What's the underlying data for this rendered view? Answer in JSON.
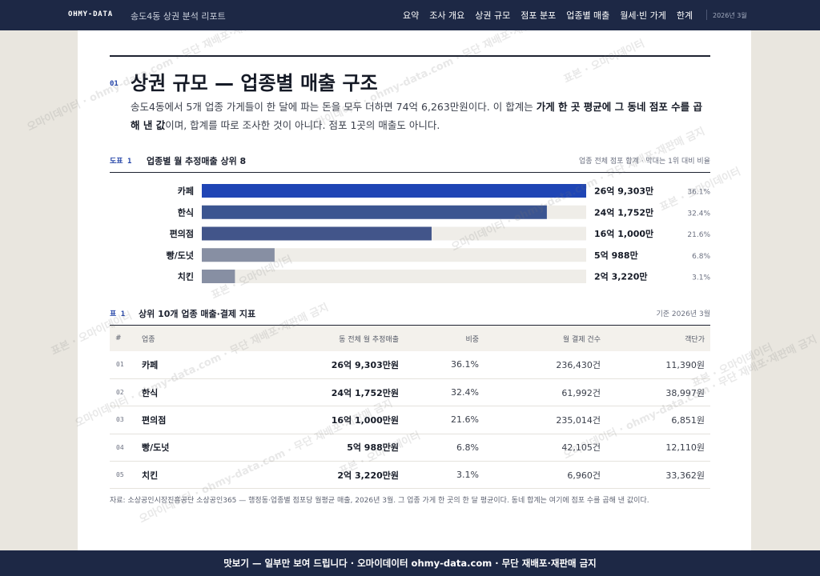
{
  "header": {
    "brand": "OHMY-DATA",
    "subtitle": "송도4동 상권 분석 리포트",
    "nav": [
      "요약",
      "조사 개요",
      "상권 규모",
      "점포 분포",
      "업종별 매출",
      "월세·빈 가게",
      "한계"
    ],
    "date": "2026년 3월"
  },
  "section": {
    "number": "01",
    "title": "상권 규모 — 업종별 매출 구조",
    "lead_1": "송도4동에서 5개 업종 가게들이 한 달에 파는 돈을 모두 더하면 74억 6,263만원이다. 이 합계는 ",
    "lead_bold": "가게 한 곳 평균에 그 동네 점포 수를 곱해 낸 값",
    "lead_2": "이며, 합계를 따로 조사한 것이 아니다. 점포 1곳의 매출도 아니다."
  },
  "figure": {
    "label": "도표 1",
    "title": "업종별 월 추정매출 상위 8",
    "note": "업종 전체 점포 합계 · 막대는 1위 대비 비율"
  },
  "chart_data": {
    "type": "bar",
    "orientation": "horizontal",
    "categories": [
      "카페",
      "한식",
      "편의점",
      "빵/도넛",
      "치킨"
    ],
    "values": [
      269303,
      241752,
      161000,
      50988,
      23220
    ],
    "value_unit": "만원",
    "value_labels": [
      "26억 9,303만",
      "24억 1,752만",
      "16억 1,000만",
      "5억 988만",
      "2억 3,220만"
    ],
    "share_labels": [
      "36.1%",
      "32.4%",
      "21.6%",
      "6.8%",
      "3.1%"
    ],
    "bar_colors": [
      "#1f45b5",
      "#3b5591",
      "#42558a",
      "#878fa3",
      "#878fa3"
    ],
    "track_color": "#efede8",
    "title": "업종별 월 추정매출 상위 8",
    "xlabel": "",
    "ylabel": ""
  },
  "table": {
    "label": "표 1",
    "title": "상위 10개 업종 매출·결제 지표",
    "note": "기준 2026년 3월",
    "columns": [
      "#",
      "업종",
      "동 전체 월 추정매출",
      "비중",
      "월 결제 건수",
      "객단가"
    ],
    "rows": [
      [
        "01",
        "카페",
        "26억 9,303만원",
        "36.1%",
        "236,430건",
        "11,390원"
      ],
      [
        "02",
        "한식",
        "24억 1,752만원",
        "32.4%",
        "61,992건",
        "38,997원"
      ],
      [
        "03",
        "편의점",
        "16억 1,000만원",
        "21.6%",
        "235,014건",
        "6,851원"
      ],
      [
        "04",
        "빵/도넛",
        "5억 988만원",
        "6.8%",
        "42,105건",
        "12,110원"
      ],
      [
        "05",
        "치킨",
        "2억 3,220만원",
        "3.1%",
        "6,960건",
        "33,362원"
      ]
    ]
  },
  "source": "자료: 소상공인시장진흥공단 소상공인365 — 행정동·업종별 점포당 월평균 매출, 2026년 3월. 그 업종 가게 한 곳의 한 달 평균이다. 동네 합계는 여기에 점포 수를 곱해 낸 값이다.",
  "footer": "맛보기 — 일부만 보여 드립니다 · 오마이데이터 ohmy-data.com · 무단 재배포·재판매 금지",
  "watermark": {
    "texts": [
      "표본 · 오마이데이터",
      "오마이데이터 · ohmy-data.com · 무단 재배포·재판매 금지"
    ]
  }
}
